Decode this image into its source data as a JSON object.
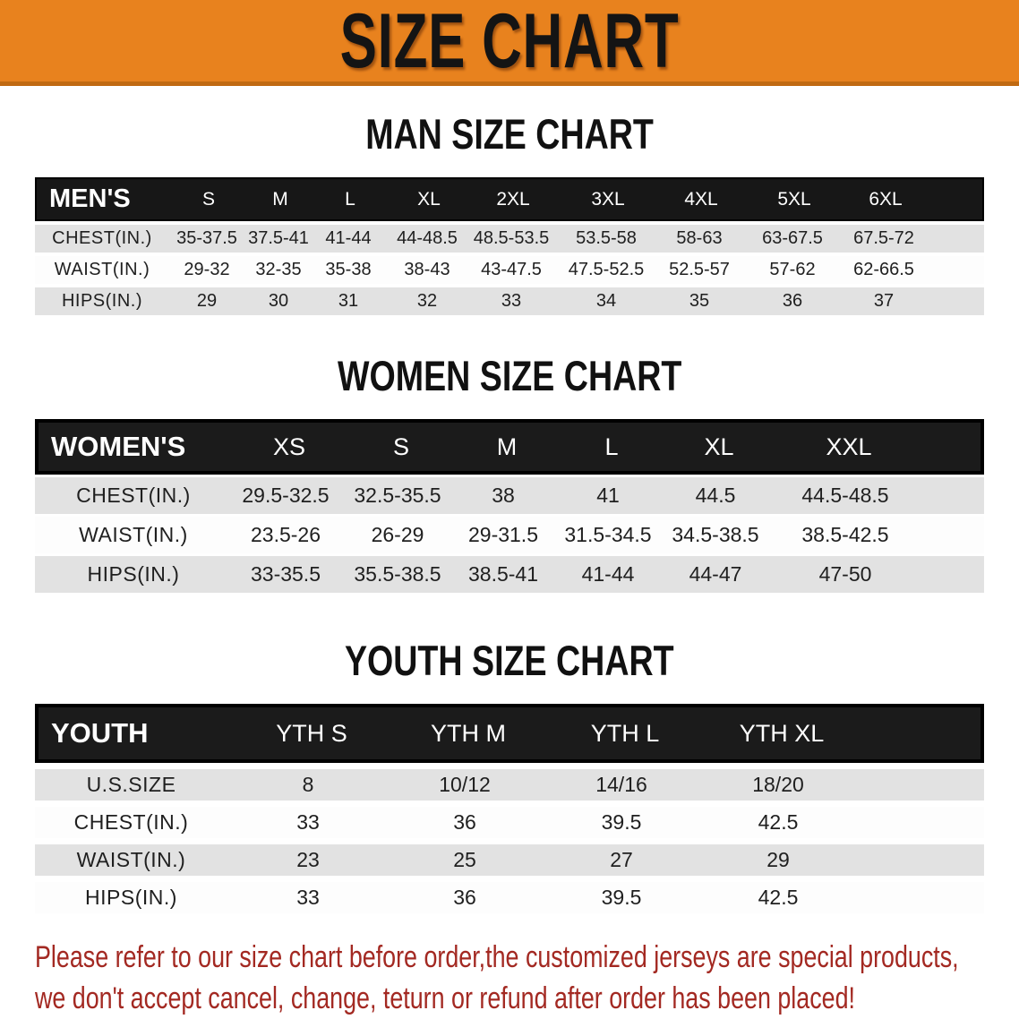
{
  "banner": {
    "title": "SIZE CHART",
    "bg_color": "#E8821E",
    "text_color": "#141414"
  },
  "sections": [
    {
      "title": "MAN SIZE CHART",
      "table": {
        "header_label": "MEN'S",
        "columns": [
          "S",
          "M",
          "L",
          "XL",
          "2XL",
          "3XL",
          "4XL",
          "5XL",
          "6XL"
        ],
        "rows": [
          {
            "label": "CHEST(IN.)",
            "values": [
              "35-37.5",
              "37.5-41",
              "41-44",
              "44-48.5",
              "48.5-53.5",
              "53.5-58",
              "58-63",
              "63-67.5",
              "67.5-72"
            ]
          },
          {
            "label": "WAIST(IN.)",
            "values": [
              "29-32",
              "32-35",
              "35-38",
              "38-43",
              "43-47.5",
              "47.5-52.5",
              "52.5-57",
              "57-62",
              "62-66.5"
            ]
          },
          {
            "label": "HIPS(IN.)",
            "values": [
              "29",
              "30",
              "31",
              "32",
              "33",
              "34",
              "35",
              "36",
              "37"
            ]
          }
        ]
      }
    },
    {
      "title": "WOMEN SIZE CHART",
      "table": {
        "header_label": "WOMEN'S",
        "columns": [
          "XS",
          "S",
          "M",
          "L",
          "XL",
          "XXL"
        ],
        "rows": [
          {
            "label": "CHEST(IN.)",
            "values": [
              "29.5-32.5",
              "32.5-35.5",
              "38",
              "41",
              "44.5",
              "44.5-48.5"
            ]
          },
          {
            "label": "WAIST(IN.)",
            "values": [
              "23.5-26",
              "26-29",
              "29-31.5",
              "31.5-34.5",
              "34.5-38.5",
              "38.5-42.5"
            ]
          },
          {
            "label": "HIPS(IN.)",
            "values": [
              "33-35.5",
              "35.5-38.5",
              "38.5-41",
              "41-44",
              "44-47",
              "47-50"
            ]
          }
        ]
      }
    },
    {
      "title": "YOUTH SIZE CHART",
      "table": {
        "header_label": "YOUTH",
        "columns": [
          "YTH S",
          "YTH M",
          "YTH L",
          "YTH XL"
        ],
        "rows": [
          {
            "label": "U.S.SIZE",
            "values": [
              "8",
              "10/12",
              "14/16",
              "18/20"
            ]
          },
          {
            "label": "CHEST(IN.)",
            "values": [
              "33",
              "36",
              "39.5",
              "42.5"
            ]
          },
          {
            "label": "WAIST(IN.)",
            "values": [
              "23",
              "25",
              "27",
              "29"
            ]
          },
          {
            "label": "HIPS(IN.)",
            "values": [
              "33",
              "36",
              "39.5",
              "42.5"
            ]
          }
        ]
      }
    }
  ],
  "footer_note": {
    "line1": "Please refer to our size chart before order,the customized jerseys are special products,",
    "line2": "we don't accept cancel, change, teturn or refund after order has been placed!",
    "color": "#A32922"
  },
  "colors": {
    "banner_orange": "#E8821E",
    "banner_edge": "#C06A12",
    "header_bar_black": "#171717",
    "row_stripe_gray": "#E2E2E2",
    "row_white": "#FDFDFD",
    "text_dark": "#1F1F1F"
  }
}
